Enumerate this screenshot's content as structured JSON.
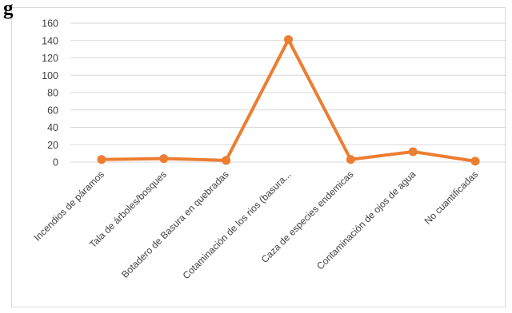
{
  "heading": "g",
  "chart_data": {
    "type": "line",
    "title": "",
    "xlabel": "",
    "ylabel": "",
    "categories": [
      "Incendios de páramos",
      "Tala de árboles/bosques",
      "Botadero de Basura en quebradas",
      "Cotaminación de los rios (basura...",
      "Caza de especies endemicas",
      "Contaminación de ojos de agua",
      "No cuantificadas"
    ],
    "series": [
      {
        "values": [
          3,
          4,
          2,
          141,
          3,
          12,
          1
        ]
      }
    ],
    "ylim": [
      0,
      160
    ],
    "yticks": [
      0,
      20,
      40,
      60,
      80,
      100,
      120,
      140,
      160
    ],
    "grid": true,
    "legend": "none",
    "line_color": "#ED7D31",
    "grid_color": "#d9d9d9"
  }
}
